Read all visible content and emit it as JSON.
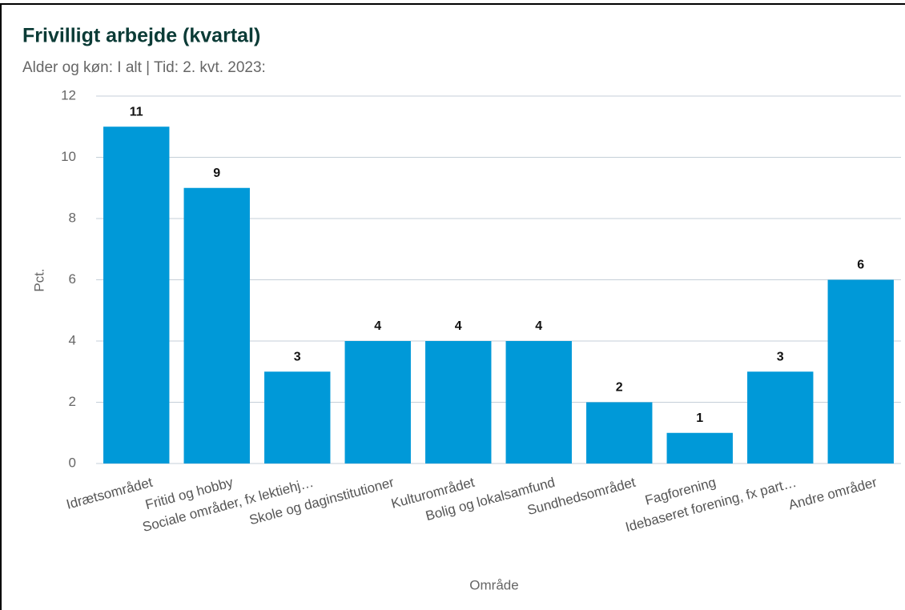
{
  "chart_data": {
    "type": "bar",
    "title": "Frivilligt arbejde (kvartal)",
    "subtitle": "Alder og køn: I alt | Tid: 2. kvt. 2023:",
    "y_label": "Pct.",
    "x_label": "Område",
    "categories": [
      "Idrætsområdet",
      "Fritid og hobby",
      "Sociale områder, fx lektiehj…",
      "Skole og daginstitutioner",
      "Kulturområdet",
      "Bolig og lokalsamfund",
      "Sundhedsområdet",
      "Fagforening",
      "Idebaseret forening, fx part…",
      "Andre områder"
    ],
    "values": [
      11,
      9,
      3,
      4,
      4,
      4,
      2,
      1,
      3,
      6
    ],
    "color": "#0099d8",
    "ylim": [
      0,
      12
    ],
    "yticks": [
      0,
      2,
      4,
      6,
      8,
      10,
      12
    ],
    "grid": true
  }
}
